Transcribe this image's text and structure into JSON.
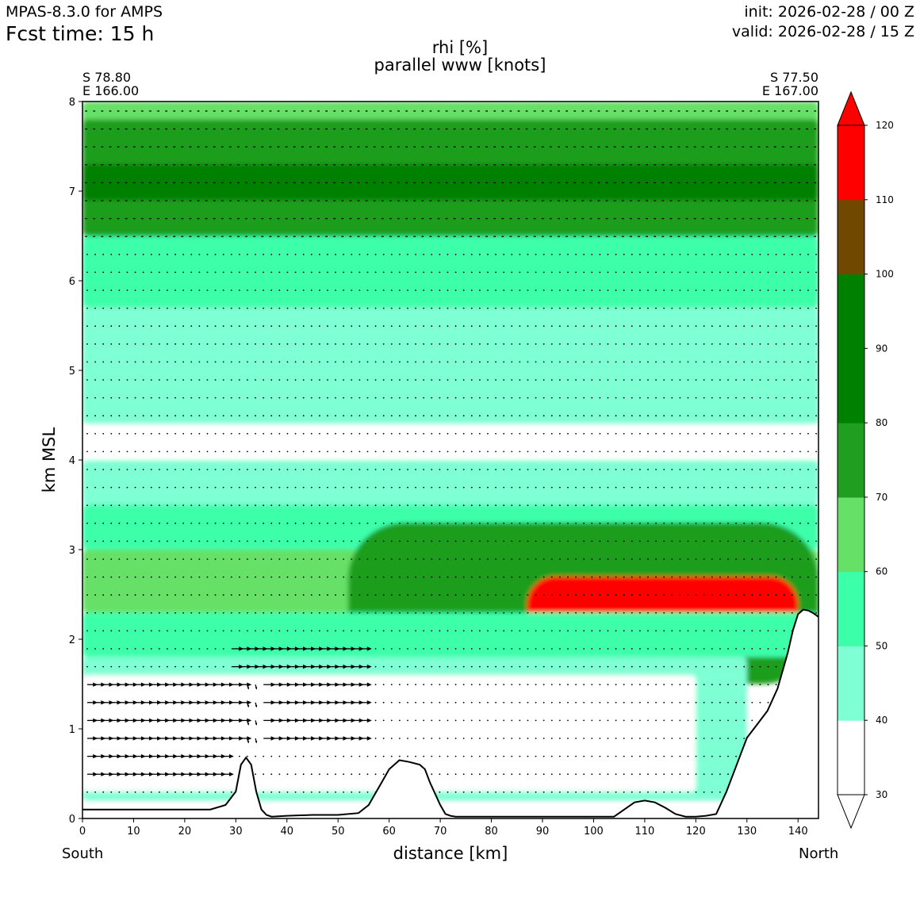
{
  "header": {
    "model": "MPAS-8.3.0 for AMPS",
    "fcst_time": "Fcst time:   15 h",
    "init": "init: 2026-02-28 / 00 Z",
    "valid": "valid: 2026-02-28 / 15 Z"
  },
  "cross_section": {
    "start_lat": "S 78.80",
    "start_lon": "E 166.00",
    "end_lat": "S 77.50",
    "end_lon": "E 167.00",
    "start_dir": "South",
    "end_dir": "North"
  },
  "chart_data": {
    "type": "heatmap",
    "title": "rhi [%]",
    "subtitle": "parallel www [knots]",
    "xlabel": "distance [km]",
    "ylabel": "km MSL",
    "xlim": [
      0,
      144
    ],
    "ylim": [
      0,
      8
    ],
    "x_ticks": [
      0,
      10,
      20,
      30,
      40,
      50,
      60,
      70,
      80,
      90,
      100,
      110,
      120,
      130,
      140
    ],
    "y_ticks": [
      0,
      1,
      2,
      3,
      4,
      5,
      6,
      7,
      8
    ],
    "colorbar": {
      "levels": [
        30,
        40,
        50,
        60,
        70,
        80,
        90,
        100,
        110,
        120
      ],
      "colors": [
        "#ffffff",
        "#7fffd4",
        "#3cffaa",
        "#66e066",
        "#1f9e1f",
        "#008000",
        "#008000",
        "#704800",
        "#ff0000"
      ],
      "extend": "both"
    },
    "field_regions": [
      {
        "rhi_band": "60-70",
        "x": [
          0,
          144
        ],
        "y": [
          6.5,
          8.0
        ]
      },
      {
        "rhi_band": "70-80",
        "x": [
          0,
          144
        ],
        "y": [
          6.5,
          7.8
        ]
      },
      {
        "rhi_band": "80-100",
        "x": [
          0,
          144
        ],
        "y": [
          6.9,
          7.3
        ]
      },
      {
        "rhi_band": "50-60",
        "x": [
          0,
          144
        ],
        "y": [
          5.7,
          6.5
        ]
      },
      {
        "rhi_band": "40-50",
        "x": [
          0,
          144
        ],
        "y": [
          4.4,
          5.7
        ]
      },
      {
        "rhi_band": "30-40",
        "x": [
          0,
          144
        ],
        "y": [
          3.9,
          4.4
        ]
      },
      {
        "rhi_band": "40-50",
        "x": [
          0,
          144
        ],
        "y": [
          3.5,
          4.0
        ]
      },
      {
        "rhi_band": "50-60",
        "x": [
          0,
          144
        ],
        "y": [
          3.0,
          3.5
        ]
      },
      {
        "rhi_band": "60-70",
        "x": [
          0,
          144
        ],
        "y": [
          2.3,
          3.0
        ]
      },
      {
        "rhi_band": "70-100",
        "x": [
          52,
          144
        ],
        "y": [
          1.5,
          3.3
        ]
      },
      {
        "rhi_band": "100-120",
        "x": [
          87,
          140
        ],
        "y": [
          1.8,
          2.7
        ]
      },
      {
        "rhi_band": "50-60",
        "x": [
          0,
          144
        ],
        "y": [
          1.8,
          2.3
        ]
      },
      {
        "rhi_band": "40-50",
        "x": [
          0,
          130
        ],
        "y": [
          0.2,
          1.8
        ]
      },
      {
        "rhi_band": "30-40",
        "x": [
          0,
          120
        ],
        "y": [
          0.3,
          1.6
        ]
      }
    ],
    "terrain": {
      "x": [
        0,
        10,
        20,
        25,
        28,
        30,
        31,
        32,
        33,
        34,
        35,
        36,
        37,
        40,
        45,
        50,
        54,
        56,
        58,
        60,
        62,
        64,
        66,
        67,
        68,
        70,
        71,
        72,
        73,
        75,
        80,
        90,
        100,
        104,
        106,
        108,
        110,
        112,
        114,
        116,
        118,
        120,
        122,
        124,
        126,
        128,
        130,
        132,
        134,
        136,
        138,
        139,
        140,
        141,
        142,
        143,
        144
      ],
      "y": [
        0.1,
        0.1,
        0.1,
        0.1,
        0.15,
        0.3,
        0.6,
        0.68,
        0.6,
        0.3,
        0.1,
        0.04,
        0.02,
        0.03,
        0.04,
        0.04,
        0.06,
        0.15,
        0.35,
        0.55,
        0.65,
        0.63,
        0.6,
        0.55,
        0.4,
        0.15,
        0.05,
        0.03,
        0.02,
        0.02,
        0.02,
        0.02,
        0.02,
        0.02,
        0.1,
        0.18,
        0.2,
        0.18,
        0.12,
        0.05,
        0.02,
        0.02,
        0.03,
        0.05,
        0.3,
        0.6,
        0.9,
        1.05,
        1.2,
        1.45,
        1.85,
        2.1,
        2.28,
        2.33,
        2.32,
        2.29,
        2.25
      ]
    },
    "wind_vectors": [
      {
        "x": [
          0,
          28
        ],
        "y": [
          0.3,
          1.6
        ],
        "u_knots": 12,
        "w_sign": 0
      },
      {
        "x": [
          28,
          55
        ],
        "y": [
          0.7,
          1.9
        ],
        "u_knots": 14,
        "w_sign": 0
      },
      {
        "x": [
          31,
          35
        ],
        "y": [
          0.7,
          1.5
        ],
        "u_knots": 6,
        "w_sign": -1
      },
      {
        "x": [
          55,
          144
        ],
        "y": [
          0.2,
          8.0
        ],
        "u_knots": 1,
        "w_sign": 0
      },
      {
        "x": [
          0,
          144
        ],
        "y": [
          6.3,
          8.0
        ],
        "u_knots": -3,
        "w_sign": 0
      }
    ]
  }
}
